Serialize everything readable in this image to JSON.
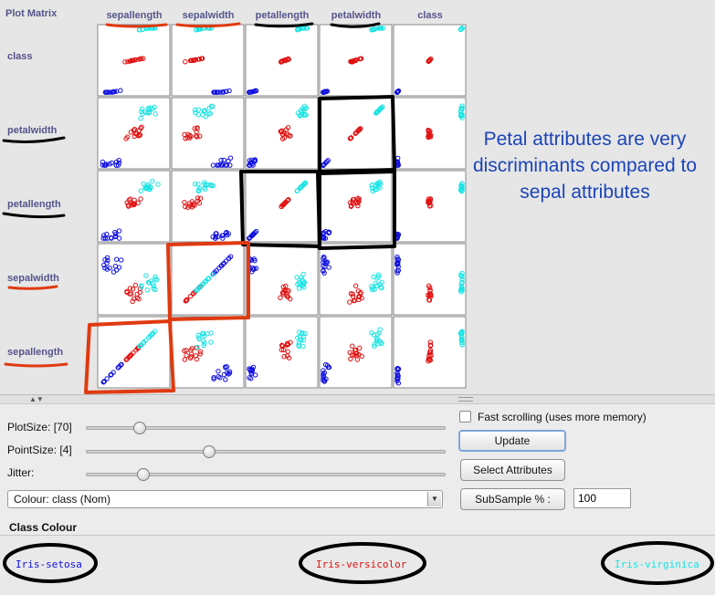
{
  "plot_matrix": {
    "title": "Plot Matrix",
    "columns": [
      "sepallength",
      "sepalwidth",
      "petallength",
      "petalwidth",
      "class"
    ],
    "rows": [
      "class",
      "petalwidth",
      "petallength",
      "sepalwidth",
      "sepallength"
    ]
  },
  "annotation": "Petal attributes are very discriminants compared to sepal attributes",
  "controls": {
    "plot_size_label": "PlotSize: [70]",
    "plot_size_value": 70,
    "point_size_label": "PointSize: [4]",
    "point_size_value": 4,
    "jitter_label": "Jitter:",
    "fast_scrolling_label": "Fast scrolling (uses more memory)",
    "fast_scrolling_checked": false,
    "update_label": "Update",
    "select_attributes_label": "Select Attributes",
    "subsample_label": "SubSample % :",
    "subsample_value": "100",
    "colour_select_value": "Colour: class  (Nom)"
  },
  "class_colour": {
    "title": "Class Colour",
    "classes": [
      {
        "name": "Iris-setosa",
        "color": "#1010e0"
      },
      {
        "name": "Iris-versicolor",
        "color": "#e01010"
      },
      {
        "name": "Iris-virginica",
        "color": "#19e3e3"
      }
    ]
  },
  "colors": {
    "label_color": "#54548c",
    "annotation_color": "#1b44b8",
    "highlight_black": "#000000",
    "highlight_red": "#e03a10",
    "setosa": "#1010e0",
    "versicolor": "#e01010",
    "virginica": "#19e3e3"
  }
}
